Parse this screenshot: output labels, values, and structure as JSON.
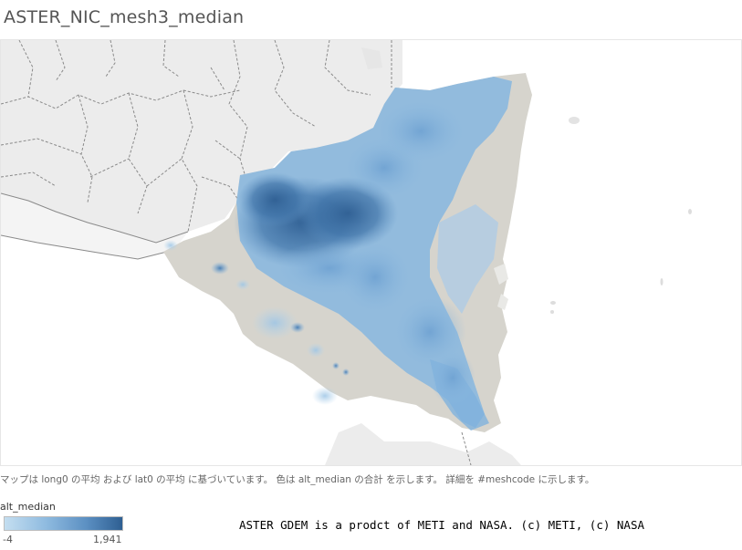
{
  "title": "ASTER_NIC_mesh3_median",
  "caption": "マップは long0 の平均 および lat0 の平均 に基づいています。 色は alt_median の合計 を示します。 詳細を #meshcode に示します。",
  "legend": {
    "title": "alt_median",
    "min_label": "-4",
    "max_label": "1,941",
    "color_low": "#c4def0",
    "color_high": "#2e5f92"
  },
  "credit": "ASTER GDEM is a prodct of METI and NASA. (c) METI, (c) NASA",
  "map": {
    "land_color": "#ededed",
    "boundary_color": "#888888",
    "lowland_color": "#d5d3cc",
    "water_color": "#ffffff"
  }
}
